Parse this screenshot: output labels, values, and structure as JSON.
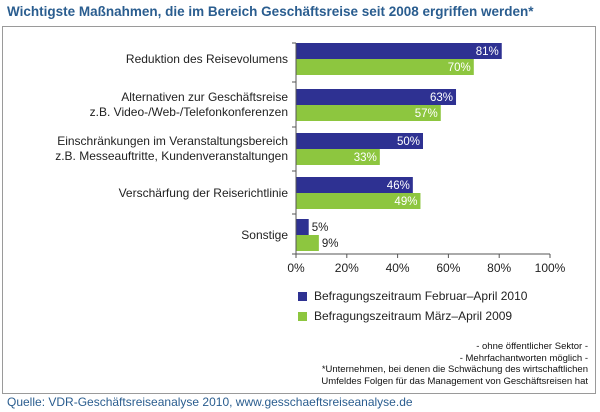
{
  "title": "Wichtigste Maßnahmen, die im Bereich Geschäftsreise seit 2008 ergriffen werden*",
  "chart_data": {
    "type": "bar",
    "orientation": "horizontal",
    "categories": [
      [
        "Reduktion des Reisevolumens"
      ],
      [
        "Alternativen zur Geschäftsreise",
        "z.B. Video-/Web-/Telefonkonferenzen"
      ],
      [
        "Einschränkungen im Veranstaltungsbereich",
        "z.B. Messeauftritte, Kundenveranstaltungen"
      ],
      [
        "Verschärfung der Reiserichtlinie"
      ],
      [
        "Sonstige"
      ]
    ],
    "series": [
      {
        "name": "Befragungszeitraum Februar–April 2010",
        "color": "#2e3192",
        "values": [
          81,
          63,
          50,
          46,
          5
        ]
      },
      {
        "name": "Befragungszeitraum März–April 2009",
        "color": "#8dc63f",
        "values": [
          70,
          57,
          33,
          49,
          9
        ]
      }
    ],
    "xlim": [
      0,
      100
    ],
    "xticks": [
      0,
      20,
      40,
      60,
      80,
      100
    ],
    "tick_suffix": "%",
    "value_suffix": "%",
    "grid": false,
    "legend_position": "bottom"
  },
  "notes": [
    "- ohne öffentlicher Sektor -",
    "- Mehrfachantworten möglich -",
    "*Unternehmen, bei denen die Schwächung des wirtschaftlichen",
    "Umfeldes Folgen für das Management von Geschäftsreisen hat"
  ],
  "source": "Quelle: VDR-Geschäftsreiseanalyse 2010, www.gesschaeftsreiseanalyse.de"
}
